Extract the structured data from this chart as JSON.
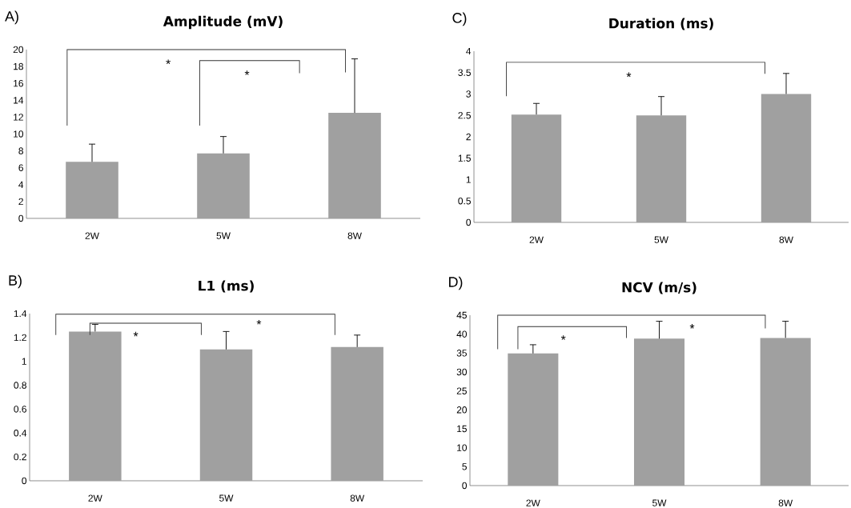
{
  "chart_data": [
    {
      "type": "bar",
      "title": "Amplitude (mV)",
      "categories": [
        "2W",
        "5W",
        "8W"
      ],
      "values": [
        6.7,
        7.7,
        12.5
      ],
      "errors": [
        [
          6.7,
          8.8
        ],
        [
          7.7,
          9.7
        ],
        [
          12.5,
          18.9
        ]
      ],
      "color": "#a0a0a0",
      "ylim": [
        0,
        20
      ],
      "yticks": [
        0,
        2,
        4,
        6,
        8,
        10,
        12,
        14,
        16,
        18,
        20
      ],
      "annotations": [
        "A)",
        "*",
        "*"
      ]
    },
    {
      "type": "bar",
      "title": "Duration (ms)",
      "categories": [
        "2W",
        "5W",
        "8W"
      ],
      "values": [
        2.52,
        2.5,
        3.0
      ],
      "errors": [
        [
          2.52,
          2.78
        ],
        [
          2.5,
          2.94
        ],
        [
          3.0,
          3.48
        ]
      ],
      "color": "#a0a0a0",
      "ylim": [
        0,
        4
      ],
      "yticks": [
        0,
        0.5,
        1,
        1.5,
        2,
        2.5,
        3,
        3.5,
        4
      ],
      "annotations": [
        "C)",
        "*"
      ]
    },
    {
      "type": "bar",
      "title": "L1 (ms)",
      "categories": [
        "2W",
        "5W",
        "8W"
      ],
      "values": [
        1.25,
        1.1,
        1.12
      ],
      "errors": [
        [
          1.25,
          1.31
        ],
        [
          1.1,
          1.25
        ],
        [
          1.12,
          1.22
        ]
      ],
      "color": "#a0a0a0",
      "ylim": [
        0,
        1.4
      ],
      "yticks": [
        0,
        0.2,
        0.4,
        0.6,
        0.8,
        1,
        1.2,
        1.4
      ],
      "annotations": [
        "B)",
        "*",
        "*"
      ]
    },
    {
      "type": "bar",
      "title": "NCV (m/s)",
      "categories": [
        "2W",
        "5W",
        "8W"
      ],
      "values": [
        34.9,
        38.8,
        39.0
      ],
      "errors": [
        [
          34.9,
          37.2
        ],
        [
          38.8,
          43.4
        ],
        [
          39.0,
          43.4
        ]
      ],
      "color": "#a0a0a0",
      "ylim": [
        0,
        45
      ],
      "yticks": [
        0,
        5,
        10,
        15,
        20,
        25,
        30,
        35,
        40,
        45
      ],
      "annotations": [
        "D)",
        "*",
        "*"
      ]
    }
  ]
}
